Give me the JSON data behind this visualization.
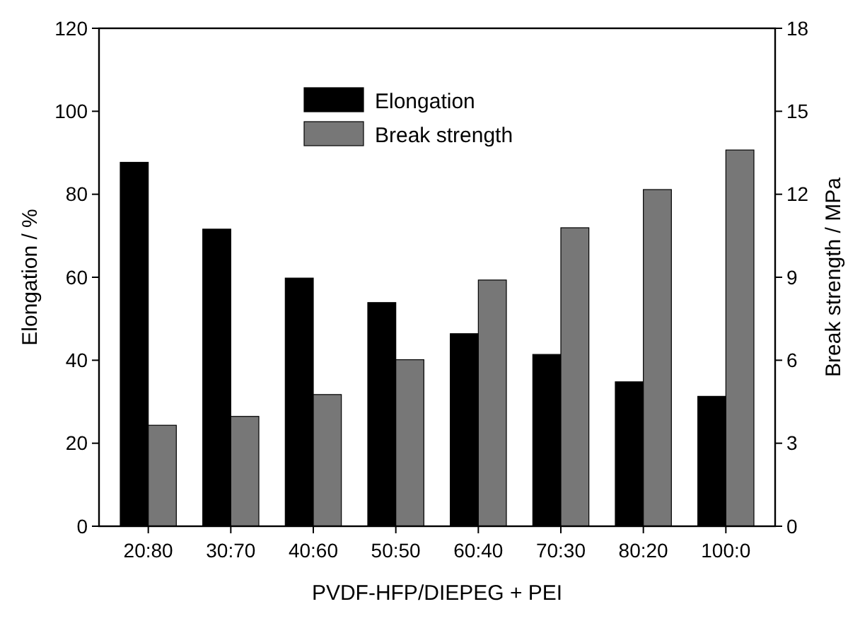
{
  "chart_data": {
    "type": "bar",
    "xlabel": "PVDF-HFP/DIEPEG + PEI",
    "ylabel": "Elongation / %",
    "y2label": "Break strength / MPa",
    "categories": [
      "20:80",
      "30:70",
      "40:60",
      "50:50",
      "60:40",
      "70:30",
      "80:20",
      "100:0"
    ],
    "series": [
      {
        "name": "Elongation",
        "color": "#000000",
        "values": [
          87.7,
          71.6,
          59.8,
          53.9,
          46.4,
          41.4,
          34.8,
          31.3
        ]
      },
      {
        "name": "Break strength",
        "color": "#777777",
        "axis": "y2",
        "values": [
          3.65,
          3.97,
          4.76,
          6.02,
          8.9,
          10.79,
          12.17,
          13.6
        ]
      }
    ],
    "ylim": [
      0,
      120
    ],
    "yticks": [
      0,
      20,
      40,
      60,
      80,
      100,
      120
    ],
    "y2lim": [
      0,
      18
    ],
    "y2ticks": [
      0,
      3,
      6,
      9,
      12,
      15,
      18
    ],
    "legend": "top",
    "grid": false
  }
}
